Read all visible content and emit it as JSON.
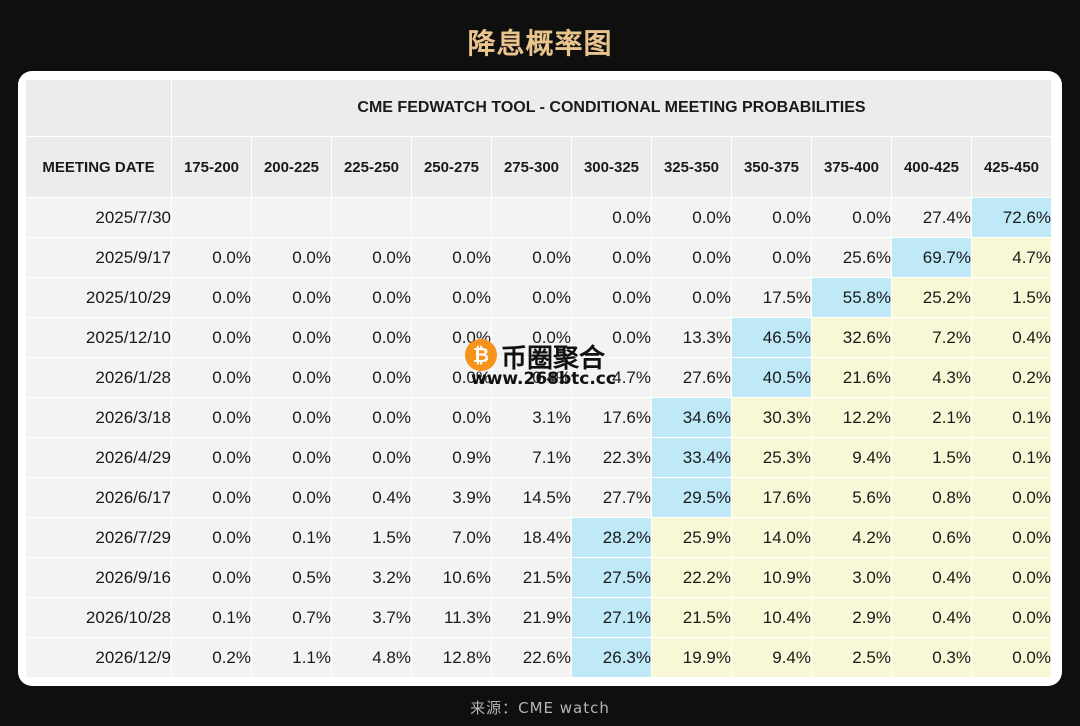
{
  "title": "降息概率图",
  "watermark": {
    "name": "币圈聚合",
    "url": "www.268btc.cc"
  },
  "source": "来源：CME watch",
  "chart_data": {
    "type": "table",
    "title": "CME FEDWATCH TOOL - CONDITIONAL MEETING PROBABILITIES",
    "row_header_label": "MEETING DATE",
    "columns": [
      "175-200",
      "200-225",
      "225-250",
      "250-275",
      "275-300",
      "300-325",
      "325-350",
      "350-375",
      "375-400",
      "400-425",
      "425-450"
    ],
    "rows": [
      {
        "date": "2025/7/30",
        "values": [
          "",
          "",
          "",
          "",
          "",
          "0.0%",
          "0.0%",
          "0.0%",
          "0.0%",
          "27.4%",
          "72.6%"
        ]
      },
      {
        "date": "2025/9/17",
        "values": [
          "0.0%",
          "0.0%",
          "0.0%",
          "0.0%",
          "0.0%",
          "0.0%",
          "0.0%",
          "0.0%",
          "25.6%",
          "69.7%",
          "4.7%"
        ]
      },
      {
        "date": "2025/10/29",
        "values": [
          "0.0%",
          "0.0%",
          "0.0%",
          "0.0%",
          "0.0%",
          "0.0%",
          "0.0%",
          "17.5%",
          "55.8%",
          "25.2%",
          "1.5%"
        ]
      },
      {
        "date": "2025/12/10",
        "values": [
          "0.0%",
          "0.0%",
          "0.0%",
          "0.0%",
          "0.0%",
          "0.0%",
          "13.3%",
          "46.5%",
          "32.6%",
          "7.2%",
          "0.4%"
        ]
      },
      {
        "date": "2026/1/28",
        "values": [
          "0.0%",
          "0.0%",
          "0.0%",
          "0.0%",
          "0.4%",
          "4.7%",
          "27.6%",
          "40.5%",
          "21.6%",
          "4.3%",
          "0.2%"
        ]
      },
      {
        "date": "2026/3/18",
        "values": [
          "0.0%",
          "0.0%",
          "0.0%",
          "0.0%",
          "3.1%",
          "17.6%",
          "34.6%",
          "30.3%",
          "12.2%",
          "2.1%",
          "0.1%"
        ]
      },
      {
        "date": "2026/4/29",
        "values": [
          "0.0%",
          "0.0%",
          "0.0%",
          "0.9%",
          "7.1%",
          "22.3%",
          "33.4%",
          "25.3%",
          "9.4%",
          "1.5%",
          "0.1%"
        ]
      },
      {
        "date": "2026/6/17",
        "values": [
          "0.0%",
          "0.0%",
          "0.4%",
          "3.9%",
          "14.5%",
          "27.7%",
          "29.5%",
          "17.6%",
          "5.6%",
          "0.8%",
          "0.0%"
        ]
      },
      {
        "date": "2026/7/29",
        "values": [
          "0.0%",
          "0.1%",
          "1.5%",
          "7.0%",
          "18.4%",
          "28.2%",
          "25.9%",
          "14.0%",
          "4.2%",
          "0.6%",
          "0.0%"
        ]
      },
      {
        "date": "2026/9/16",
        "values": [
          "0.0%",
          "0.5%",
          "3.2%",
          "10.6%",
          "21.5%",
          "27.5%",
          "22.2%",
          "10.9%",
          "3.0%",
          "0.4%",
          "0.0%"
        ]
      },
      {
        "date": "2026/10/28",
        "values": [
          "0.1%",
          "0.7%",
          "3.7%",
          "11.3%",
          "21.9%",
          "27.1%",
          "21.5%",
          "10.4%",
          "2.9%",
          "0.4%",
          "0.0%"
        ]
      },
      {
        "date": "2026/12/9",
        "values": [
          "0.2%",
          "1.1%",
          "4.8%",
          "12.8%",
          "22.6%",
          "26.3%",
          "19.9%",
          "9.4%",
          "2.5%",
          "0.3%",
          "0.0%"
        ]
      }
    ],
    "highlight_colors": {
      "max": "#bfe9f7",
      "after_max": "#f8f8d7",
      "default": "#f3f3f3"
    }
  }
}
